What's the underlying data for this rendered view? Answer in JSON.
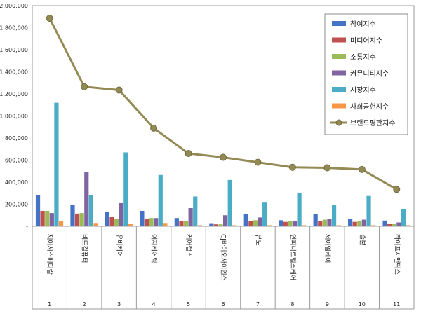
{
  "chart_data": {
    "type": "bar",
    "title": "",
    "xlabel": "",
    "ylabel": "",
    "ylim": [
      0,
      2000000
    ],
    "yticks": [
      "-",
      "200,000",
      "400,000",
      "600,000",
      "800,000",
      "1,000,000",
      "1,200,000",
      "1,400,000",
      "1,600,000",
      "1,800,000",
      "2,000,000"
    ],
    "ytick_values": [
      0,
      200000,
      400000,
      600000,
      800000,
      1000000,
      1200000,
      1400000,
      1600000,
      1800000,
      2000000
    ],
    "categories": [
      "제이시스메디칼",
      "비트컴퓨터",
      "유비케어",
      "이지케어텍",
      "케어랩스",
      "CJ바이오사이언스",
      "뷰노",
      "인피니트헬스케어",
      "제이엘케이",
      "솔본",
      "라이프시맨틱스"
    ],
    "ranks": [
      "1",
      "2",
      "3",
      "4",
      "5",
      "6",
      "7",
      "8",
      "9",
      "10",
      "11"
    ],
    "grid": false,
    "legend_position": "top-right",
    "series": [
      {
        "name": "참여지수",
        "type": "bar",
        "color": "#4472C4",
        "values": [
          280000,
          195000,
          130000,
          140000,
          75000,
          28000,
          110000,
          55000,
          110000,
          65000,
          52000
        ]
      },
      {
        "name": "미디어지수",
        "type": "bar",
        "color": "#C0504D",
        "values": [
          140000,
          115000,
          85000,
          70000,
          45000,
          18000,
          50000,
          40000,
          50000,
          40000,
          25000
        ]
      },
      {
        "name": "소통지수",
        "type": "bar",
        "color": "#9BBB59",
        "values": [
          140000,
          120000,
          70000,
          75000,
          50000,
          18000,
          55000,
          45000,
          60000,
          45000,
          25000
        ]
      },
      {
        "name": "커뮤니티지수",
        "type": "bar",
        "color": "#8064A2",
        "values": [
          120000,
          490000,
          210000,
          75000,
          165000,
          100000,
          80000,
          50000,
          65000,
          60000,
          35000
        ]
      },
      {
        "name": "시장지수",
        "type": "bar",
        "color": "#4BACC6",
        "values": [
          1120000,
          280000,
          670000,
          465000,
          270000,
          420000,
          215000,
          305000,
          195000,
          275000,
          155000
        ]
      },
      {
        "name": "사회공헌지수",
        "type": "bar",
        "color": "#F79646",
        "values": [
          45000,
          30000,
          25000,
          30000,
          10000,
          10000,
          10000,
          10000,
          10000,
          10000,
          10000
        ]
      },
      {
        "name": "브랜드평판지수",
        "type": "line",
        "color": "#938953",
        "values": [
          1885000,
          1265000,
          1235000,
          890000,
          660000,
          625000,
          580000,
          535000,
          530000,
          515000,
          335000
        ]
      }
    ]
  }
}
